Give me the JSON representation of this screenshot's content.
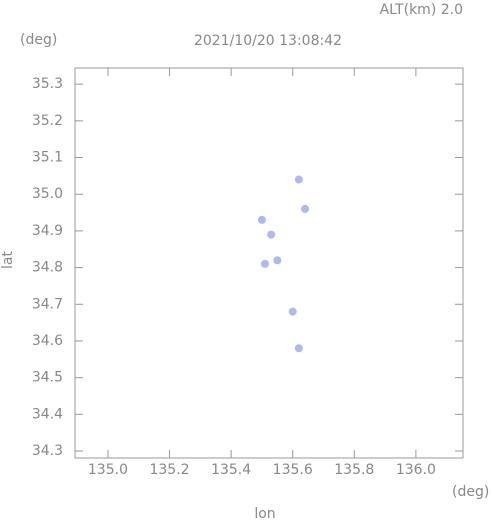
{
  "chart_data": {
    "type": "scatter",
    "title": "2021/10/20 13:08:42",
    "subtitle": "ALT(km) 2.0",
    "x_label": "lon",
    "y_label": "lat",
    "x_unit": "(deg)",
    "y_unit": "(deg)",
    "color": "#8f9af0",
    "x": [
      135.62,
      135.5,
      135.64,
      135.53,
      135.51,
      135.55,
      135.6,
      135.62
    ],
    "values": [
      35.04,
      34.93,
      34.96,
      34.89,
      34.81,
      34.82,
      34.68,
      34.58
    ],
    "xlim": [
      134.893,
      136.153
    ],
    "ylim": [
      34.281,
      35.344
    ],
    "xticks": [
      {
        "value": 135.0,
        "label": "135.0"
      },
      135.2,
      135.4,
      135.6,
      135.8,
      {
        "value": 136.0,
        "label": "136.0"
      }
    ],
    "yticks": [
      35.3,
      35.2,
      35.1,
      {
        "value": 35.0,
        "label": "35.0"
      },
      34.9,
      34.8,
      34.7,
      34.6,
      34.5,
      34.4,
      34.3
    ]
  }
}
